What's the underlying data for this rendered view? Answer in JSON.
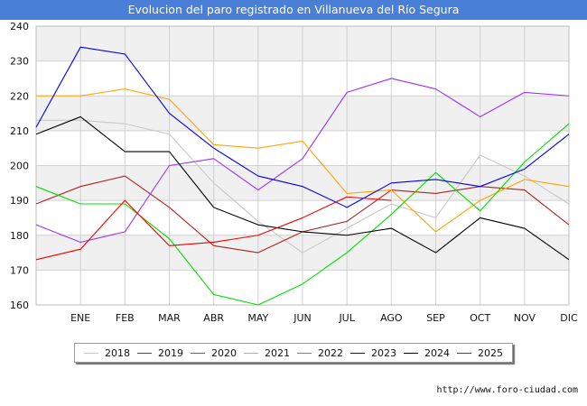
{
  "header": {
    "title": "Evolucion del paro registrado en Villanueva del Río Segura"
  },
  "footer": {
    "url": "http://www.foro-ciudad.com"
  },
  "colors": {
    "title_bg": "#4a7fd8",
    "band": "#f0f0f0",
    "grid": "#d0d0d0"
  },
  "chart_data": {
    "type": "line",
    "title": "Evolucion del paro registrado en Villanueva del Río Segura",
    "xlabel": "",
    "ylabel": "",
    "categories": [
      "",
      "ENE",
      "FEB",
      "MAR",
      "ABR",
      "MAY",
      "JUN",
      "JUL",
      "AGO",
      "SEP",
      "OCT",
      "NOV",
      "DIC"
    ],
    "ylim": [
      160,
      240
    ],
    "yticks": [
      160,
      170,
      180,
      190,
      200,
      210,
      220,
      230,
      240
    ],
    "grid": true,
    "legend_position": "bottom",
    "series": [
      {
        "name": "2018",
        "color": "#c8c8c8",
        "values": [
          213,
          213,
          212,
          209,
          195,
          184,
          175,
          182,
          189,
          185,
          203,
          197,
          189
        ]
      },
      {
        "name": "2019",
        "color": "#b22222",
        "values": [
          189,
          194,
          197,
          188,
          177,
          175,
          181,
          184,
          193,
          192,
          194,
          193,
          183
        ]
      },
      {
        "name": "2020",
        "color": "#9b30ff",
        "values": [
          183,
          178,
          181,
          200,
          202,
          193,
          202,
          221,
          225,
          222,
          214,
          221,
          220
        ]
      },
      {
        "name": "2021",
        "color": "#ffa500",
        "values": [
          220,
          220,
          222,
          219,
          206,
          205,
          207,
          192,
          193,
          181,
          190,
          196,
          194
        ]
      },
      {
        "name": "2022",
        "color": "#00e000",
        "values": [
          194,
          189,
          189,
          179,
          163,
          160,
          166,
          175,
          186,
          198,
          187,
          201,
          212
        ]
      },
      {
        "name": "2023",
        "color": "#0000ee",
        "values": [
          211,
          234,
          232,
          215,
          205,
          197,
          194,
          188,
          195,
          196,
          194,
          199,
          209
        ]
      },
      {
        "name": "2024",
        "color": "#000000",
        "values": [
          209,
          214,
          204,
          204,
          188,
          183,
          181,
          180,
          182,
          175,
          185,
          182,
          173
        ]
      },
      {
        "name": "2025",
        "color": "#ee0000",
        "values": [
          173,
          176,
          190,
          177,
          178,
          180,
          185,
          191,
          190,
          null,
          null,
          null,
          null
        ]
      }
    ]
  }
}
